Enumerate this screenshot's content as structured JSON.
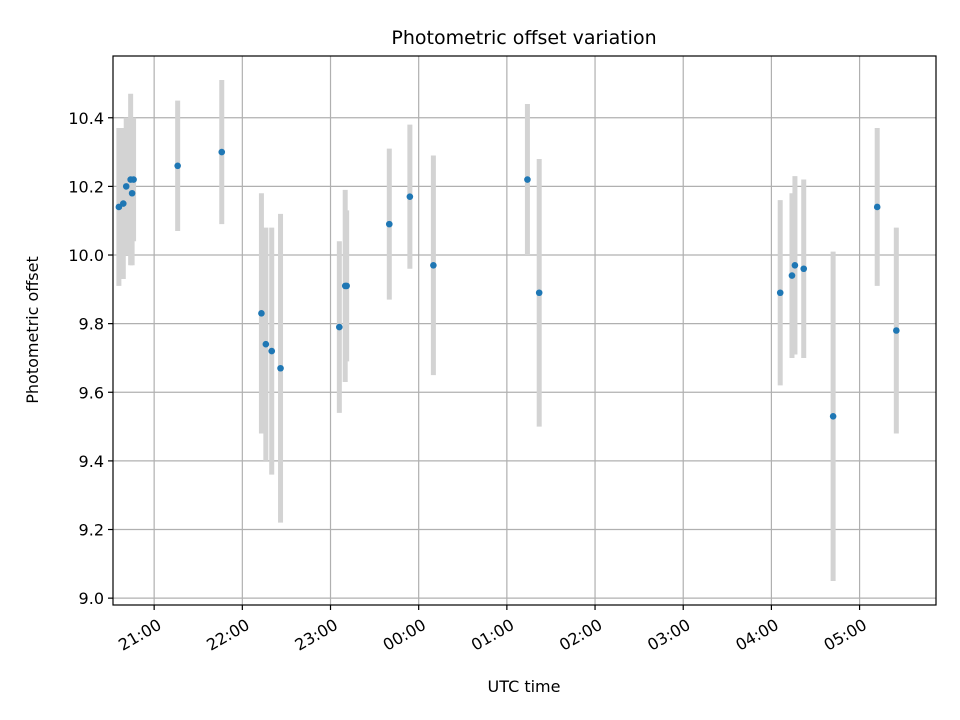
{
  "chart_data": {
    "type": "scatter",
    "title": "Photometric offset variation",
    "xlabel": "UTC time",
    "ylabel": "Photometric offset",
    "x_axis_kind": "time",
    "xlim": [
      "20:32",
      "05:52"
    ],
    "ylim": [
      8.98,
      10.58
    ],
    "grid": true,
    "x_ticks": [
      "21:00",
      "22:00",
      "23:00",
      "00:00",
      "01:00",
      "02:00",
      "03:00",
      "04:00",
      "05:00"
    ],
    "y_ticks": [
      9.0,
      9.2,
      9.4,
      9.6,
      9.8,
      10.0,
      10.2,
      10.4
    ],
    "y_tick_labels": [
      "9.0",
      "9.2",
      "9.4",
      "9.6",
      "9.8",
      "10.0",
      "10.2",
      "10.4"
    ],
    "marker_color": "#1f77b4",
    "errorbar_color": "#d3d3d3",
    "points": [
      {
        "x": "20:36",
        "y": 10.14,
        "err": 0.23
      },
      {
        "x": "20:39",
        "y": 10.15,
        "err": 0.22
      },
      {
        "x": "20:41",
        "y": 10.2,
        "err": 0.2
      },
      {
        "x": "20:44",
        "y": 10.22,
        "err": 0.25
      },
      {
        "x": "20:45",
        "y": 10.18,
        "err": 0.21
      },
      {
        "x": "20:46",
        "y": 10.22,
        "err": 0.18
      },
      {
        "x": "21:16",
        "y": 10.26,
        "err": 0.19
      },
      {
        "x": "21:46",
        "y": 10.3,
        "err": 0.21
      },
      {
        "x": "22:13",
        "y": 9.83,
        "err": 0.35
      },
      {
        "x": "22:16",
        "y": 9.74,
        "err": 0.34
      },
      {
        "x": "22:20",
        "y": 9.72,
        "err": 0.36
      },
      {
        "x": "22:26",
        "y": 9.67,
        "err": 0.45
      },
      {
        "x": "23:06",
        "y": 9.79,
        "err": 0.25
      },
      {
        "x": "23:10",
        "y": 9.91,
        "err": 0.28
      },
      {
        "x": "23:11",
        "y": 9.91,
        "err": 0.22
      },
      {
        "x": "23:40",
        "y": 10.09,
        "err": 0.22
      },
      {
        "x": "23:54",
        "y": 10.17,
        "err": 0.21
      },
      {
        "x": "00:10",
        "y": 9.97,
        "err": 0.32
      },
      {
        "x": "01:14",
        "y": 10.22,
        "err": 0.22
      },
      {
        "x": "01:22",
        "y": 9.89,
        "err": 0.39
      },
      {
        "x": "04:06",
        "y": 9.89,
        "err": 0.27
      },
      {
        "x": "04:14",
        "y": 9.94,
        "err": 0.24
      },
      {
        "x": "04:16",
        "y": 9.97,
        "err": 0.26
      },
      {
        "x": "04:22",
        "y": 9.96,
        "err": 0.26
      },
      {
        "x": "04:42",
        "y": 9.53,
        "err": 0.48
      },
      {
        "x": "05:12",
        "y": 10.14,
        "err": 0.23
      },
      {
        "x": "05:25",
        "y": 9.78,
        "err": 0.3
      }
    ]
  }
}
